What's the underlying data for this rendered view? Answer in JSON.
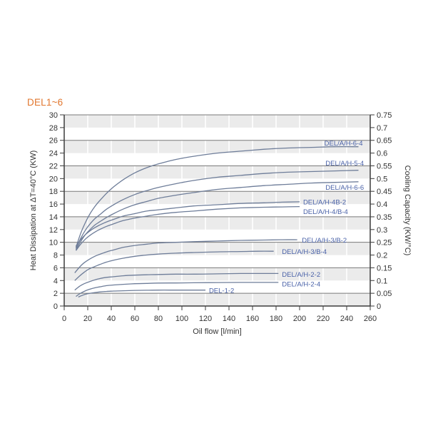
{
  "page": {
    "title": "DEL1~6",
    "title_color": "#e2772f",
    "background": "#ffffff"
  },
  "chart_data": {
    "type": "line",
    "title": "DEL1~6",
    "xlabel": "Oil flow [l/min]",
    "ylabel_left": "Heat Dissipation at  ΔT=40°C (KW)",
    "ylabel_right": "Cooling Capacity (KW/°C)",
    "x_range": [
      0,
      260
    ],
    "x_tick_step": 20,
    "y_left_range": [
      0,
      30
    ],
    "y_left_tick_step": 2,
    "y_right_range": [
      0,
      0.75
    ],
    "y_right_tick_step": 0.05,
    "grid": {
      "band_color": "#ebebeb",
      "band_pairs_y": [
        [
          0,
          2
        ],
        [
          4,
          6
        ],
        [
          8,
          10
        ],
        [
          12,
          14
        ],
        [
          16,
          18
        ],
        [
          20,
          22
        ],
        [
          24,
          26
        ],
        [
          28,
          30
        ]
      ],
      "major_lines_y": [
        2,
        6,
        10,
        14,
        18,
        22,
        26,
        30
      ],
      "major_line_color": "#7a7a7a",
      "vertical_line_color": "#ffffff",
      "axis_color": "#3c3c3c",
      "tick_label_color": "#333333"
    },
    "series_color": "#6e7d99",
    "label_color": "#4a62a8",
    "series": [
      {
        "name": "DEL/A/H-6-4",
        "label_pos": [
          221,
          25.5
        ],
        "points": [
          [
            10,
            9.2
          ],
          [
            14,
            11.4
          ],
          [
            18,
            13.1
          ],
          [
            22,
            14.5
          ],
          [
            26,
            15.6
          ],
          [
            30,
            16.5
          ],
          [
            36,
            17.7
          ],
          [
            42,
            18.7
          ],
          [
            50,
            19.8
          ],
          [
            60,
            20.9
          ],
          [
            70,
            21.7
          ],
          [
            80,
            22.3
          ],
          [
            95,
            23.0
          ],
          [
            110,
            23.5
          ],
          [
            130,
            24.0
          ],
          [
            150,
            24.3
          ],
          [
            170,
            24.6
          ],
          [
            190,
            24.8
          ],
          [
            210,
            24.9
          ],
          [
            230,
            25.0
          ],
          [
            250,
            25.0
          ]
        ]
      },
      {
        "name": "DEL/A/H-5-4",
        "label_pos": [
          222,
          22.4
        ],
        "points": [
          [
            10,
            9.0
          ],
          [
            14,
            10.6
          ],
          [
            18,
            11.9
          ],
          [
            22,
            12.9
          ],
          [
            26,
            13.7
          ],
          [
            30,
            14.3
          ],
          [
            36,
            15.2
          ],
          [
            42,
            15.9
          ],
          [
            50,
            16.7
          ],
          [
            60,
            17.5
          ],
          [
            70,
            18.1
          ],
          [
            80,
            18.6
          ],
          [
            95,
            19.2
          ],
          [
            110,
            19.7
          ],
          [
            130,
            20.2
          ],
          [
            150,
            20.5
          ],
          [
            170,
            20.8
          ],
          [
            190,
            21.0
          ],
          [
            210,
            21.1
          ],
          [
            230,
            21.2
          ],
          [
            250,
            21.3
          ]
        ]
      },
      {
        "name": "DEL/A/H-6-6",
        "label_pos": [
          222,
          18.6
        ],
        "points": [
          [
            10,
            8.8
          ],
          [
            14,
            10.1
          ],
          [
            18,
            11.2
          ],
          [
            22,
            12.0
          ],
          [
            26,
            12.7
          ],
          [
            30,
            13.2
          ],
          [
            36,
            13.9
          ],
          [
            42,
            14.5
          ],
          [
            50,
            15.2
          ],
          [
            60,
            15.9
          ],
          [
            70,
            16.4
          ],
          [
            80,
            16.9
          ],
          [
            95,
            17.4
          ],
          [
            110,
            17.8
          ],
          [
            130,
            18.3
          ],
          [
            150,
            18.6
          ],
          [
            170,
            18.9
          ],
          [
            190,
            19.1
          ],
          [
            210,
            19.3
          ],
          [
            230,
            19.4
          ],
          [
            250,
            19.5
          ]
        ]
      },
      {
        "name": "DEL/A/H-4B-2",
        "label_pos": [
          203,
          16.3
        ],
        "points": [
          [
            10,
            9.4
          ],
          [
            14,
            10.4
          ],
          [
            18,
            11.2
          ],
          [
            22,
            11.8
          ],
          [
            26,
            12.3
          ],
          [
            30,
            12.7
          ],
          [
            36,
            13.2
          ],
          [
            42,
            13.6
          ],
          [
            50,
            14.1
          ],
          [
            60,
            14.5
          ],
          [
            70,
            14.9
          ],
          [
            80,
            15.1
          ],
          [
            95,
            15.4
          ],
          [
            110,
            15.7
          ],
          [
            130,
            15.9
          ],
          [
            150,
            16.1
          ],
          [
            170,
            16.2
          ],
          [
            185,
            16.3
          ],
          [
            200,
            16.35
          ]
        ]
      },
      {
        "name": "DEL/A/H-4/B-4",
        "label_pos": [
          203,
          14.8
        ],
        "points": [
          [
            10,
            8.7
          ],
          [
            14,
            9.7
          ],
          [
            18,
            10.5
          ],
          [
            22,
            11.1
          ],
          [
            26,
            11.6
          ],
          [
            30,
            12.0
          ],
          [
            36,
            12.5
          ],
          [
            42,
            12.9
          ],
          [
            50,
            13.4
          ],
          [
            60,
            13.8
          ],
          [
            70,
            14.1
          ],
          [
            80,
            14.4
          ],
          [
            95,
            14.7
          ],
          [
            110,
            14.9
          ],
          [
            130,
            15.2
          ],
          [
            150,
            15.4
          ],
          [
            170,
            15.5
          ],
          [
            185,
            15.55
          ],
          [
            200,
            15.6
          ]
        ]
      },
      {
        "name": "DEL/A/H-3/B-2",
        "label_pos": [
          202,
          10.3
        ],
        "points": [
          [
            9,
            5.2
          ],
          [
            13,
            6.1
          ],
          [
            17,
            6.8
          ],
          [
            21,
            7.3
          ],
          [
            26,
            7.8
          ],
          [
            30,
            8.1
          ],
          [
            36,
            8.5
          ],
          [
            42,
            8.8
          ],
          [
            50,
            9.2
          ],
          [
            60,
            9.5
          ],
          [
            70,
            9.7
          ],
          [
            80,
            9.9
          ],
          [
            95,
            10.0
          ],
          [
            110,
            10.1
          ],
          [
            130,
            10.2
          ],
          [
            150,
            10.3
          ],
          [
            170,
            10.35
          ],
          [
            185,
            10.4
          ],
          [
            198,
            10.4
          ]
        ]
      },
      {
        "name": "DEL/A/H-3/B-4",
        "label_pos": [
          185,
          8.5
        ],
        "points": [
          [
            9,
            4.0
          ],
          [
            13,
            4.7
          ],
          [
            17,
            5.3
          ],
          [
            21,
            5.8
          ],
          [
            26,
            6.2
          ],
          [
            30,
            6.5
          ],
          [
            36,
            6.9
          ],
          [
            42,
            7.2
          ],
          [
            50,
            7.5
          ],
          [
            60,
            7.8
          ],
          [
            70,
            8.0
          ],
          [
            80,
            8.15
          ],
          [
            95,
            8.3
          ],
          [
            110,
            8.4
          ],
          [
            130,
            8.5
          ],
          [
            150,
            8.55
          ],
          [
            165,
            8.6
          ],
          [
            178,
            8.6
          ]
        ]
      },
      {
        "name": "DEL/A/H-2-2",
        "label_pos": [
          185,
          4.9
        ],
        "points": [
          [
            9,
            2.5
          ],
          [
            13,
            3.1
          ],
          [
            17,
            3.5
          ],
          [
            21,
            3.8
          ],
          [
            26,
            4.1
          ],
          [
            30,
            4.3
          ],
          [
            36,
            4.5
          ],
          [
            42,
            4.6
          ],
          [
            50,
            4.75
          ],
          [
            60,
            4.85
          ],
          [
            70,
            4.9
          ],
          [
            80,
            4.95
          ],
          [
            95,
            5.0
          ],
          [
            110,
            5.0
          ],
          [
            130,
            5.05
          ],
          [
            150,
            5.1
          ],
          [
            170,
            5.1
          ],
          [
            182,
            5.1
          ]
        ]
      },
      {
        "name": "DEL/A/H-2-4",
        "label_pos": [
          185,
          3.4
        ],
        "points": [
          [
            10,
            1.5
          ],
          [
            13,
            1.9
          ],
          [
            17,
            2.3
          ],
          [
            21,
            2.6
          ],
          [
            26,
            2.85
          ],
          [
            30,
            3.0
          ],
          [
            36,
            3.2
          ],
          [
            42,
            3.3
          ],
          [
            50,
            3.4
          ],
          [
            60,
            3.5
          ],
          [
            70,
            3.55
          ],
          [
            80,
            3.6
          ],
          [
            95,
            3.62
          ],
          [
            110,
            3.65
          ],
          [
            130,
            3.68
          ],
          [
            150,
            3.7
          ],
          [
            170,
            3.7
          ],
          [
            182,
            3.7
          ]
        ]
      },
      {
        "name": "DEL-1-2",
        "label_pos": [
          123,
          2.4
        ],
        "points": [
          [
            12,
            1.4
          ],
          [
            15,
            1.65
          ],
          [
            18,
            1.85
          ],
          [
            22,
            2.0
          ],
          [
            26,
            2.1
          ],
          [
            30,
            2.2
          ],
          [
            36,
            2.3
          ],
          [
            42,
            2.35
          ],
          [
            50,
            2.4
          ],
          [
            60,
            2.45
          ],
          [
            70,
            2.47
          ],
          [
            80,
            2.5
          ],
          [
            95,
            2.5
          ],
          [
            110,
            2.5
          ],
          [
            120,
            2.5
          ]
        ]
      }
    ]
  }
}
